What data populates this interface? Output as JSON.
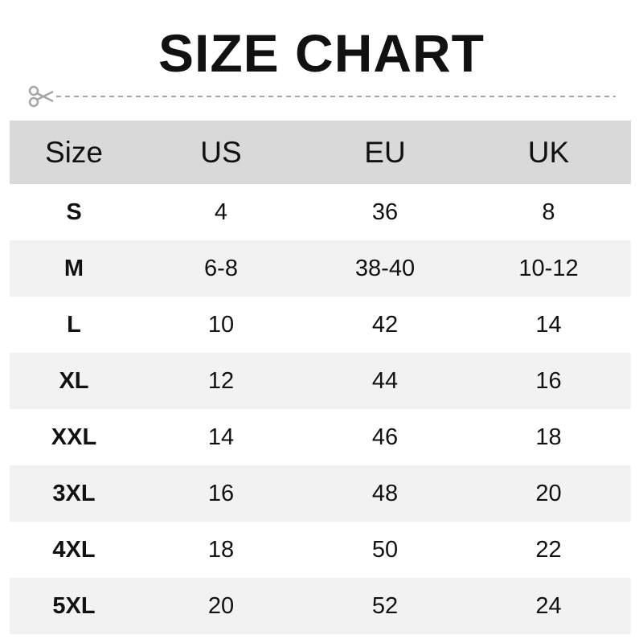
{
  "title": "SIZE CHART",
  "icons": {
    "cut": "scissors-icon"
  },
  "colors": {
    "header_bg": "#d9d9d9",
    "alt_row_bg": "#f2f2f2",
    "dash": "#a6a6a6"
  },
  "table": {
    "headers": [
      "Size",
      "US",
      "EU",
      "UK"
    ],
    "rows": [
      [
        "S",
        "4",
        "36",
        "8"
      ],
      [
        "M",
        "6-8",
        "38-40",
        "10-12"
      ],
      [
        "L",
        "10",
        "42",
        "14"
      ],
      [
        "XL",
        "12",
        "44",
        "16"
      ],
      [
        "XXL",
        "14",
        "46",
        "18"
      ],
      [
        "3XL",
        "16",
        "48",
        "20"
      ],
      [
        "4XL",
        "18",
        "50",
        "22"
      ],
      [
        "5XL",
        "20",
        "52",
        "24"
      ]
    ]
  }
}
